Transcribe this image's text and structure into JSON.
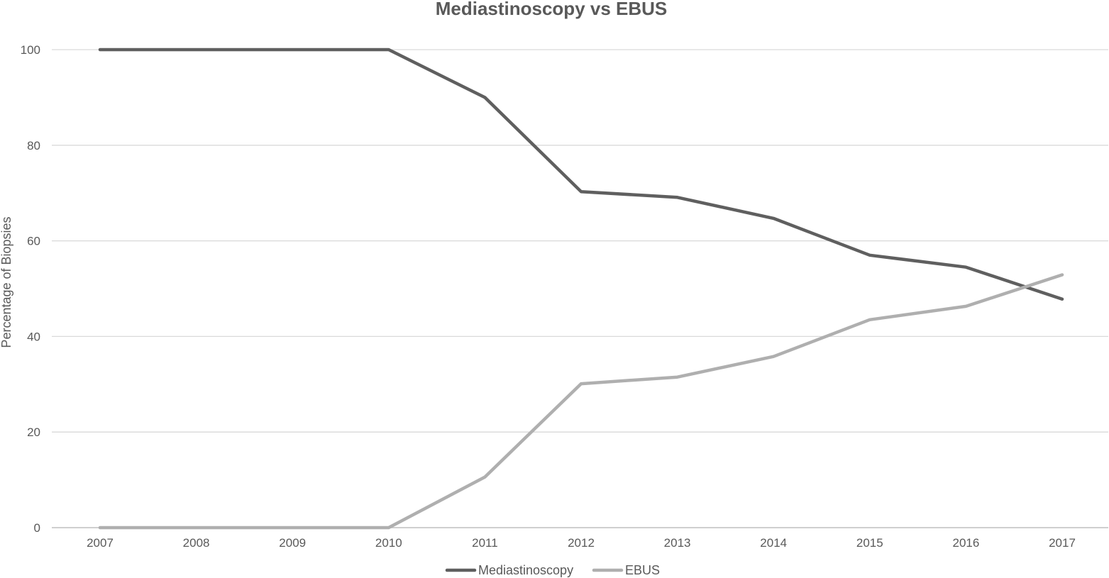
{
  "chart_data": {
    "type": "line",
    "title": "Mediastinoscopy vs EBUS",
    "xlabel": "",
    "ylabel": "Percentage of Biopsies",
    "categories": [
      "2007",
      "2008",
      "2009",
      "2010",
      "2011",
      "2012",
      "2013",
      "2014",
      "2015",
      "2016",
      "2017"
    ],
    "y_ticks": [
      "0",
      "20",
      "40",
      "60",
      "80",
      "100"
    ],
    "ylim": [
      0,
      100
    ],
    "grid": true,
    "legend_position": "bottom",
    "series": [
      {
        "name": "Mediastinoscopy",
        "color": "#5f5f5f",
        "values": [
          100,
          100,
          100,
          100,
          90,
          70.3,
          69.1,
          64.7,
          57,
          54.5,
          47.8
        ]
      },
      {
        "name": "EBUS",
        "color": "#afafaf",
        "values": [
          0,
          0,
          0,
          0,
          10.6,
          30.1,
          31.5,
          35.8,
          43.5,
          46.3,
          52.9
        ]
      }
    ]
  }
}
